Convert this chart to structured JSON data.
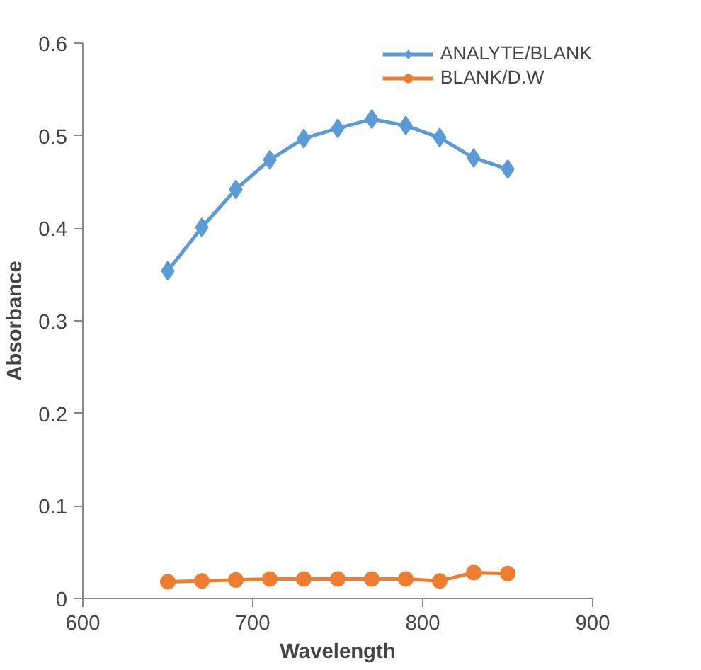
{
  "chart_data": {
    "type": "line",
    "xlabel": "Wavelength",
    "ylabel": "Absorbance",
    "x": [
      650,
      670,
      690,
      710,
      730,
      750,
      770,
      790,
      810,
      830,
      850
    ],
    "series": [
      {
        "name": "ANALYTE/BLANK",
        "color": "#5b9bd5",
        "marker": "diamond",
        "values": [
          0.354,
          0.401,
          0.442,
          0.474,
          0.497,
          0.508,
          0.518,
          0.511,
          0.498,
          0.476,
          0.464
        ]
      },
      {
        "name": "BLANK/D.W",
        "color": "#ed7d31",
        "marker": "circle",
        "values": [
          0.018,
          0.019,
          0.02,
          0.021,
          0.021,
          0.021,
          0.021,
          0.021,
          0.019,
          0.028,
          0.027
        ]
      }
    ],
    "xlim": [
      600,
      900
    ],
    "xticks": [
      600,
      700,
      800,
      900
    ],
    "ylim": [
      0,
      0.6
    ],
    "yticks": [
      0,
      0.1,
      0.2,
      0.3,
      0.4,
      0.5,
      0.6
    ],
    "grid": false,
    "legend": "top right",
    "line_style": "solid"
  }
}
